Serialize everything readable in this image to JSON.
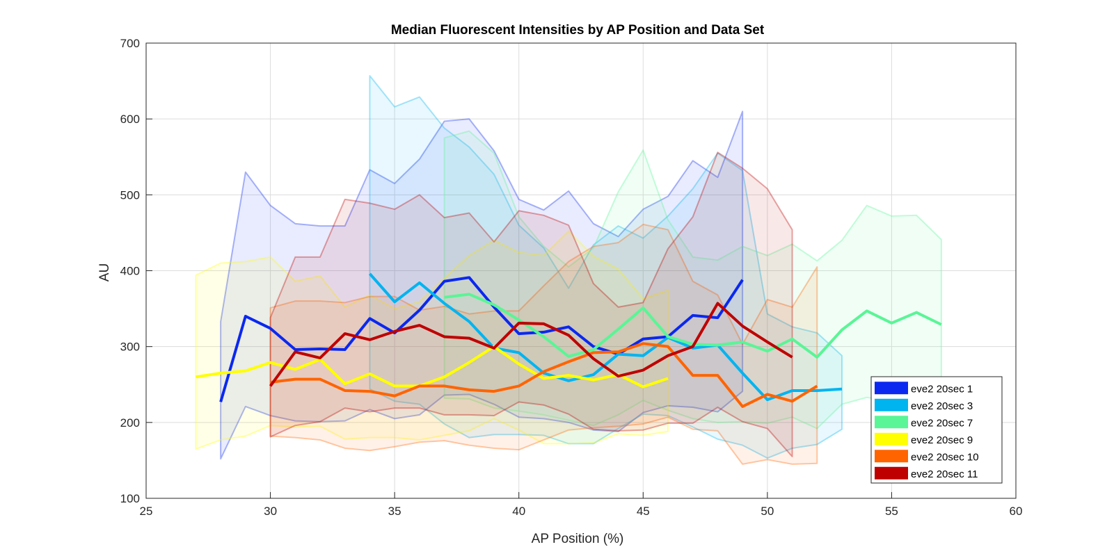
{
  "chart_data": {
    "type": "line",
    "title": "Median Fluorescent Intensities by AP Position and Data Set",
    "xlabel": "AP Position (%)",
    "ylabel": "AU",
    "xlim": [
      25,
      60
    ],
    "ylim": [
      100,
      700
    ],
    "xticks": [
      25,
      30,
      35,
      40,
      45,
      50,
      55,
      60
    ],
    "yticks": [
      100,
      200,
      300,
      400,
      500,
      600,
      700
    ],
    "grid": true,
    "legend_position": "bottom-right",
    "series": [
      {
        "name": "eve2 20sec 1",
        "color": "#0a28f0",
        "x": [
          28,
          29,
          30,
          31,
          32,
          33,
          34,
          35,
          36,
          37,
          38,
          39,
          40,
          41,
          42,
          43,
          44,
          45,
          46,
          47,
          48,
          49
        ],
        "y": [
          227,
          340,
          324,
          296,
          297,
          296,
          337,
          318,
          348,
          386,
          391,
          352,
          317,
          319,
          326,
          300,
          290,
          310,
          313,
          341,
          338,
          388
        ],
        "upper": [
          333,
          530,
          486,
          462,
          459,
          459,
          533,
          515,
          547,
          597,
          600,
          558,
          494,
          480,
          505,
          462,
          445,
          481,
          498,
          545,
          523,
          610
        ],
        "lower": [
          152,
          221,
          209,
          202,
          201,
          202,
          217,
          205,
          210,
          236,
          237,
          224,
          207,
          205,
          200,
          190,
          188,
          213,
          222,
          220,
          214,
          241
        ]
      },
      {
        "name": "eve2 20sec 3",
        "color": "#00b4f0",
        "x": [
          34,
          35,
          36,
          37,
          38,
          39,
          40,
          41,
          42,
          43,
          44,
          45,
          46,
          47,
          48,
          49,
          50,
          51,
          52,
          53
        ],
        "y": [
          396,
          359,
          384,
          357,
          333,
          298,
          292,
          265,
          255,
          263,
          290,
          288,
          312,
          298,
          302,
          265,
          230,
          242,
          242,
          244
        ],
        "upper": [
          657,
          616,
          629,
          588,
          563,
          527,
          460,
          430,
          377,
          434,
          459,
          443,
          472,
          508,
          555,
          532,
          343,
          326,
          318,
          288
        ],
        "lower": [
          244,
          228,
          224,
          198,
          180,
          184,
          184,
          183,
          172,
          172,
          192,
          211,
          209,
          194,
          178,
          170,
          153,
          166,
          171,
          191
        ]
      },
      {
        "name": "eve2 20sec 7",
        "color": "#5af596",
        "x": [
          37,
          38,
          39,
          40,
          41,
          42,
          43,
          44,
          45,
          46,
          47,
          48,
          49,
          50,
          51,
          52,
          53,
          54,
          55,
          56,
          57
        ],
        "y": [
          365,
          369,
          355,
          335,
          313,
          287,
          296,
          323,
          351,
          313,
          303,
          302,
          306,
          294,
          310,
          286,
          322,
          347,
          331,
          345,
          329
        ],
        "upper": [
          575,
          584,
          555,
          471,
          432,
          405,
          430,
          504,
          559,
          467,
          418,
          414,
          432,
          420,
          435,
          413,
          440,
          486,
          472,
          473,
          441
        ],
        "lower": [
          232,
          231,
          219,
          215,
          210,
          203,
          196,
          210,
          229,
          216,
          205,
          200,
          201,
          199,
          207,
          192,
          224,
          233,
          228,
          229,
          221
        ]
      },
      {
        "name": "eve2 20sec 9",
        "color": "#ffff00",
        "x": [
          27,
          28,
          29,
          30,
          31,
          32,
          33,
          34,
          35,
          36,
          37,
          38,
          39,
          40,
          41,
          42,
          43,
          44,
          45,
          46
        ],
        "y": [
          260,
          265,
          268,
          279,
          270,
          283,
          251,
          264,
          248,
          248,
          260,
          279,
          300,
          277,
          258,
          262,
          256,
          263,
          247,
          258
        ],
        "upper": [
          394,
          410,
          412,
          418,
          386,
          393,
          352,
          368,
          350,
          359,
          390,
          420,
          440,
          424,
          420,
          452,
          419,
          402,
          363,
          374
        ],
        "lower": [
          165,
          177,
          182,
          196,
          194,
          195,
          178,
          180,
          180,
          177,
          183,
          189,
          205,
          190,
          172,
          172,
          173,
          185,
          183,
          188
        ]
      },
      {
        "name": "eve2 20sec 10",
        "color": "#ff6400",
        "x": [
          30,
          31,
          32,
          33,
          34,
          35,
          36,
          37,
          38,
          39,
          40,
          41,
          42,
          43,
          44,
          45,
          46,
          47,
          48,
          49,
          50,
          51,
          52
        ],
        "y": [
          253,
          257,
          257,
          242,
          241,
          235,
          248,
          248,
          243,
          241,
          248,
          267,
          280,
          292,
          293,
          304,
          300,
          262,
          262,
          221,
          237,
          228,
          248
        ],
        "upper": [
          351,
          360,
          360,
          358,
          366,
          366,
          348,
          353,
          343,
          347,
          347,
          380,
          412,
          432,
          437,
          461,
          454,
          386,
          368,
          303,
          362,
          352,
          405
        ],
        "lower": [
          182,
          180,
          177,
          166,
          163,
          168,
          174,
          176,
          170,
          166,
          164,
          177,
          190,
          193,
          195,
          198,
          207,
          191,
          189,
          145,
          151,
          145,
          146
        ]
      },
      {
        "name": "eve2 20sec 11",
        "color": "#be0000",
        "x": [
          30,
          31,
          32,
          33,
          34,
          35,
          36,
          37,
          38,
          39,
          40,
          41,
          42,
          43,
          44,
          45,
          46,
          47,
          48,
          49,
          50,
          51
        ],
        "y": [
          248,
          293,
          285,
          317,
          309,
          320,
          328,
          313,
          311,
          298,
          331,
          330,
          315,
          284,
          261,
          269,
          288,
          300,
          357,
          327,
          306,
          286
        ],
        "upper": [
          338,
          418,
          418,
          494,
          489,
          481,
          500,
          470,
          476,
          438,
          479,
          473,
          460,
          383,
          352,
          358,
          429,
          471,
          556,
          535,
          508,
          454
        ],
        "lower": [
          181,
          196,
          201,
          219,
          214,
          219,
          219,
          210,
          210,
          209,
          227,
          223,
          211,
          191,
          189,
          190,
          199,
          199,
          220,
          201,
          192,
          155
        ]
      }
    ]
  }
}
